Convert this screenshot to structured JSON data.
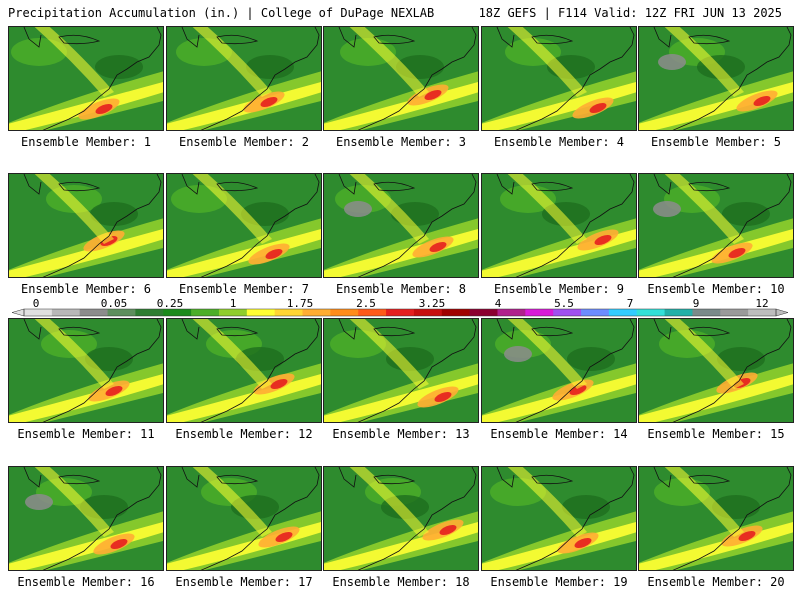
{
  "header": {
    "left": "Precipitation Accumulation (in.) | College of DuPage NEXLAB",
    "right": "18Z GEFS | F114 Valid: 12Z FRI JUN 13 2025"
  },
  "members": [
    {
      "label": "Ensemble Member: 1"
    },
    {
      "label": "Ensemble Member: 2"
    },
    {
      "label": "Ensemble Member: 3"
    },
    {
      "label": "Ensemble Member: 4"
    },
    {
      "label": "Ensemble Member: 5"
    },
    {
      "label": "Ensemble Member: 6"
    },
    {
      "label": "Ensemble Member: 7"
    },
    {
      "label": "Ensemble Member: 8"
    },
    {
      "label": "Ensemble Member: 9"
    },
    {
      "label": "Ensemble Member: 10"
    },
    {
      "label": "Ensemble Member: 11"
    },
    {
      "label": "Ensemble Member: 12"
    },
    {
      "label": "Ensemble Member: 13"
    },
    {
      "label": "Ensemble Member: 14"
    },
    {
      "label": "Ensemble Member: 15"
    },
    {
      "label": "Ensemble Member: 16"
    },
    {
      "label": "Ensemble Member: 17"
    },
    {
      "label": "Ensemble Member: 18"
    },
    {
      "label": "Ensemble Member: 19"
    },
    {
      "label": "Ensemble Member: 20"
    }
  ],
  "colorbar": {
    "ticks": [
      "0",
      "0.05",
      "0.25",
      "1",
      "1.75",
      "2.5",
      "3.25",
      "4",
      "5.5",
      "7",
      "9",
      "12"
    ],
    "colors": [
      "#e0e0e0",
      "#b8b8b8",
      "#8c8c8c",
      "#5e8f5e",
      "#2e7d32",
      "#1b8a1b",
      "#4caf28",
      "#8fce2c",
      "#ffff33",
      "#ffd633",
      "#ffad33",
      "#ff8c1a",
      "#ff5a1a",
      "#e61f1f",
      "#c80f0f",
      "#a00000",
      "#8b0030",
      "#b0208c",
      "#d81bd8",
      "#a050f0",
      "#6c8cff",
      "#33ccff",
      "#33e0d8",
      "#22b0a8",
      "#7a8a8a",
      "#9a9a9a",
      "#bdbdbd"
    ]
  }
}
